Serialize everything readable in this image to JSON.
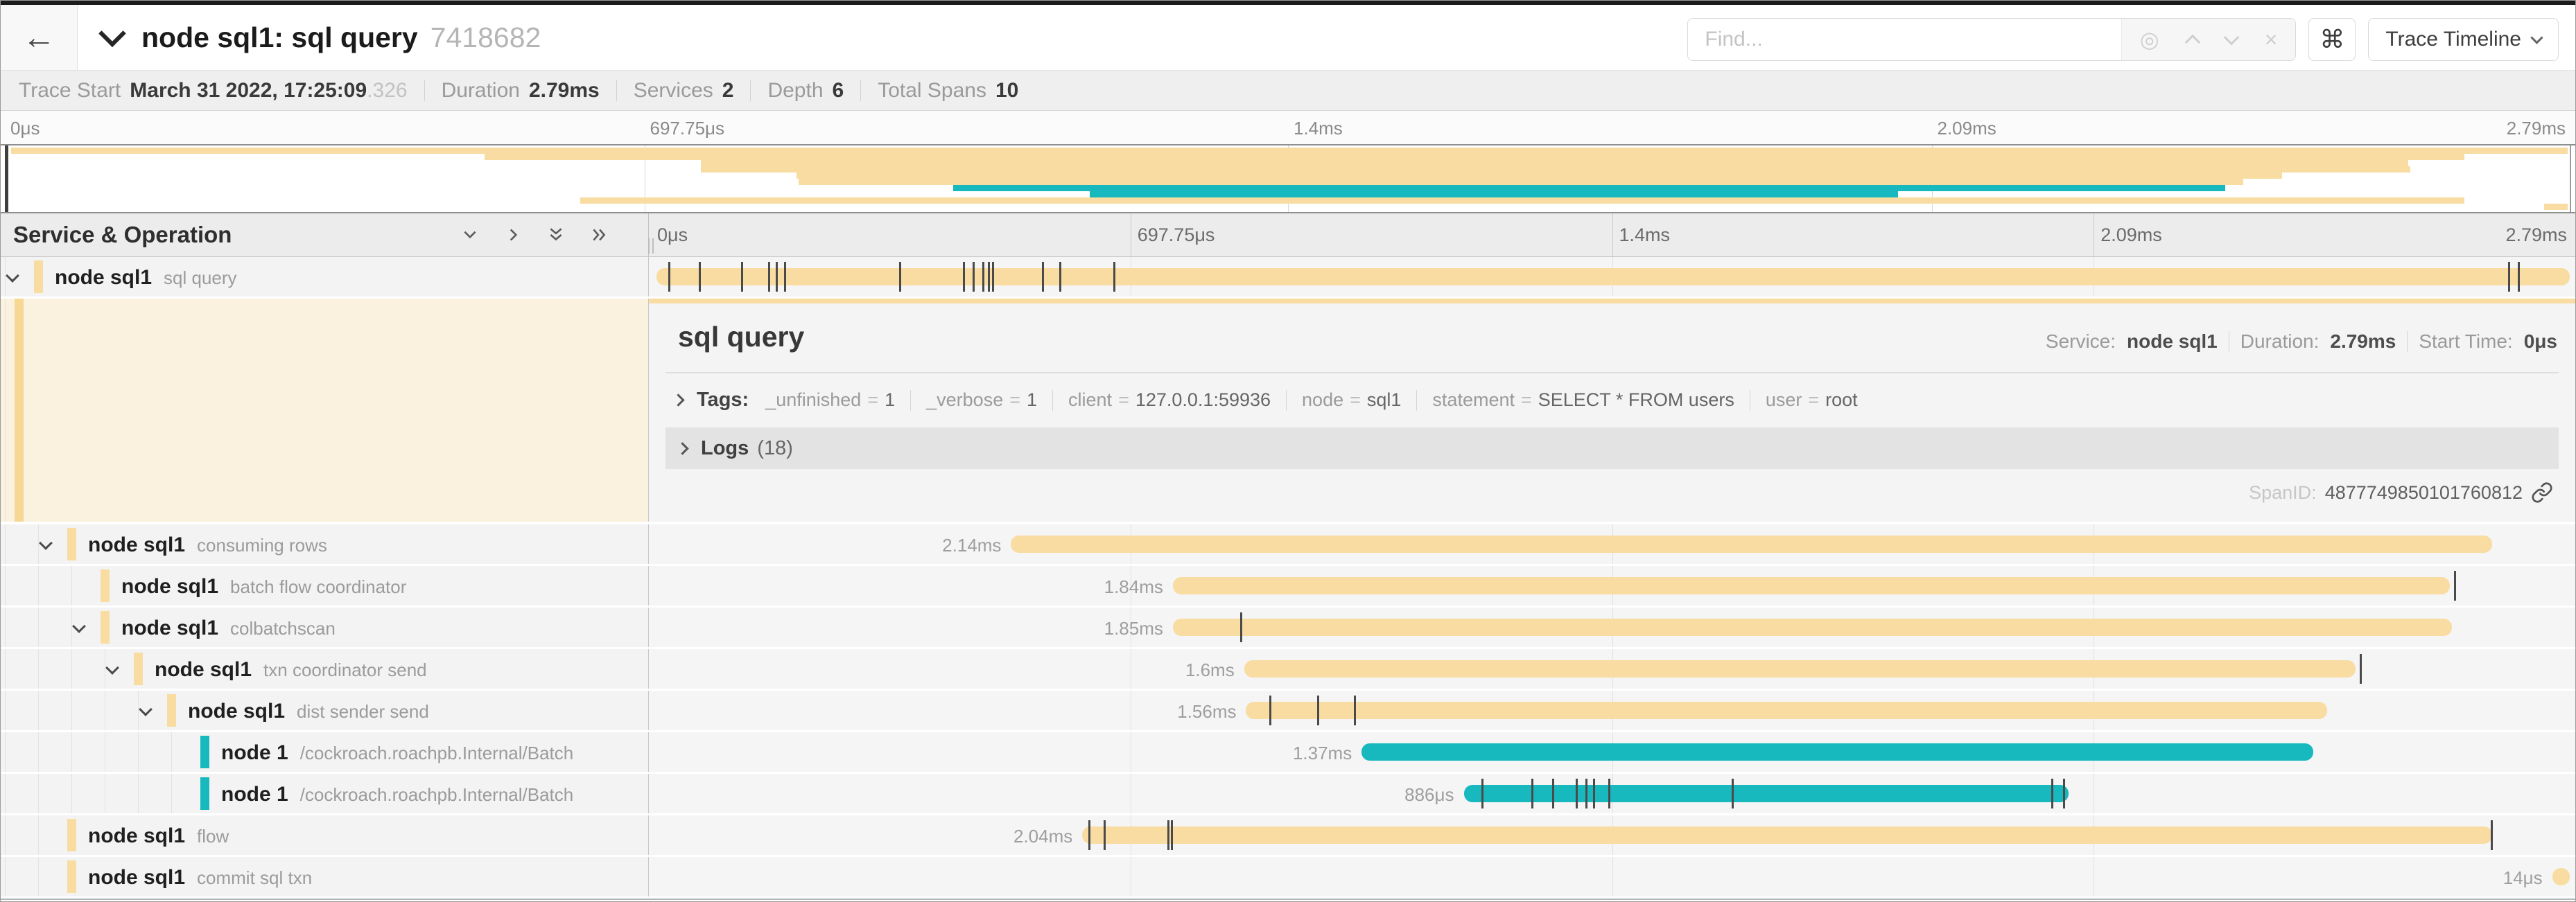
{
  "colors": {
    "tan": "#F8DCA1",
    "teal": "#17B8BE"
  },
  "icons": {
    "back": "←",
    "locate": "◎",
    "close": "×",
    "command": "⌘"
  },
  "header": {
    "title": "node sql1: sql query",
    "trace_id": "7418682",
    "find_placeholder": "Find...",
    "view_selector": "Trace Timeline"
  },
  "trace_info": {
    "items": [
      {
        "label": "Trace Start",
        "value": "March 31 2022, 17:25:09",
        "suffix": ".326"
      },
      {
        "label": "Duration",
        "value": "2.79ms",
        "suffix": ""
      },
      {
        "label": "Services",
        "value": "2",
        "suffix": ""
      },
      {
        "label": "Depth",
        "value": "6",
        "suffix": ""
      },
      {
        "label": "Total Spans",
        "value": "10",
        "suffix": ""
      }
    ]
  },
  "timeline": {
    "section_header": "Service & Operation",
    "ticks": [
      "0μs",
      "697.75μs",
      "1.4ms",
      "2.09ms",
      "2.79ms"
    ]
  },
  "spans": [
    {
      "service": "node sql1",
      "operation": "sql query",
      "depth": 0,
      "children": true,
      "color": "tan",
      "start": 0.004,
      "end": 0.997,
      "duration_label": "",
      "ticks": [
        0.01,
        0.026,
        0.048,
        0.062,
        0.066,
        0.07,
        0.13,
        0.163,
        0.168,
        0.173,
        0.176,
        0.178,
        0.204,
        0.213,
        0.241,
        0.965,
        0.97
      ]
    },
    {
      "service": "node sql1",
      "operation": "consuming rows",
      "depth": 1,
      "children": true,
      "color": "tan",
      "start": 0.188,
      "end": 0.957,
      "duration_label": "2.14ms",
      "ticks": []
    },
    {
      "service": "node sql1",
      "operation": "batch flow coordinator",
      "depth": 2,
      "children": false,
      "color": "tan",
      "start": 0.272,
      "end": 0.935,
      "duration_label": "1.84ms",
      "ticks": [
        0.937
      ]
    },
    {
      "service": "node sql1",
      "operation": "colbatchscan",
      "depth": 2,
      "children": true,
      "color": "tan",
      "start": 0.272,
      "end": 0.936,
      "duration_label": "1.85ms",
      "ticks": [
        0.307
      ]
    },
    {
      "service": "node sql1",
      "operation": "txn coordinator send",
      "depth": 3,
      "children": true,
      "color": "tan",
      "start": 0.309,
      "end": 0.886,
      "duration_label": "1.6ms",
      "ticks": [
        0.888
      ]
    },
    {
      "service": "node sql1",
      "operation": "dist sender send",
      "depth": 4,
      "children": true,
      "color": "tan",
      "start": 0.31,
      "end": 0.871,
      "duration_label": "1.56ms",
      "ticks": [
        0.322,
        0.347,
        0.366
      ]
    },
    {
      "service": "node 1",
      "operation": "/cockroach.roachpb.Internal/Batch",
      "depth": 5,
      "children": false,
      "color": "teal",
      "start": 0.37,
      "end": 0.864,
      "duration_label": "1.37ms",
      "ticks": []
    },
    {
      "service": "node 1",
      "operation": "/cockroach.roachpb.Internal/Batch",
      "depth": 5,
      "children": false,
      "color": "teal",
      "start": 0.423,
      "end": 0.737,
      "duration_label": "886μs",
      "ticks": [
        0.432,
        0.458,
        0.469,
        0.481,
        0.486,
        0.49,
        0.498,
        0.562,
        0.728,
        0.734
      ]
    },
    {
      "service": "node sql1",
      "operation": "flow",
      "depth": 1,
      "children": false,
      "color": "tan",
      "start": 0.225,
      "end": 0.957,
      "duration_label": "2.04ms",
      "ticks": [
        0.228,
        0.236,
        0.269,
        0.271,
        0.956
      ]
    },
    {
      "service": "node sql1",
      "operation": "commit sql txn",
      "depth": 1,
      "children": false,
      "color": "tan",
      "start": 0.988,
      "end": 0.997,
      "duration_label": "14μs",
      "ticks": []
    }
  ],
  "detail": {
    "title": "sql query",
    "service_label": "Service:",
    "service": "node sql1",
    "duration_label": "Duration:",
    "duration": "2.79ms",
    "start_label": "Start Time:",
    "start": "0μs",
    "tags_label": "Tags:",
    "tags": [
      {
        "key": "_unfinished",
        "value": "1"
      },
      {
        "key": "_verbose",
        "value": "1"
      },
      {
        "key": "client",
        "value": "127.0.0.1:59936"
      },
      {
        "key": "node",
        "value": "sql1"
      },
      {
        "key": "statement",
        "value": "SELECT * FROM users"
      },
      {
        "key": "user",
        "value": "root"
      }
    ],
    "logs_label": "Logs",
    "logs_count": "(18)",
    "span_id_label": "SpanID:",
    "span_id": "4877749850101760812"
  }
}
